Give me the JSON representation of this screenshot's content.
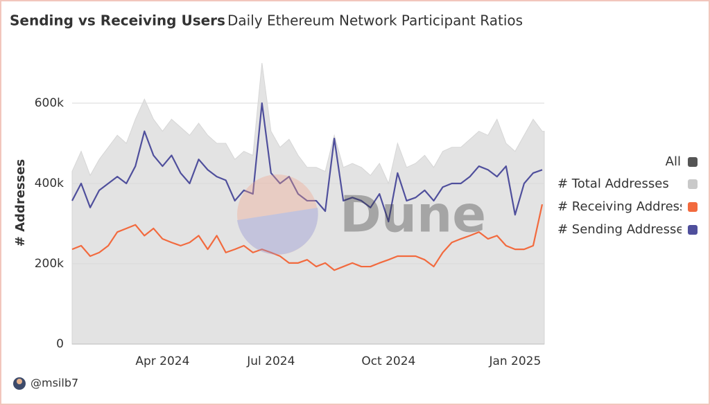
{
  "chart_data": {
    "type": "area-line",
    "title": "Sending vs Receiving Users",
    "subtitle": "Daily Ethereum Network Participant Ratios",
    "y_label": "# Addresses",
    "legend_all": "All",
    "watermark": "Dune",
    "author": "@msilb7",
    "categories": [
      null,
      null,
      null,
      null,
      null,
      null,
      null,
      null,
      null,
      null,
      "Apr 2024",
      null,
      null,
      null,
      null,
      null,
      null,
      null,
      null,
      null,
      null,
      null,
      "Jul 2024",
      null,
      null,
      null,
      null,
      null,
      null,
      null,
      null,
      null,
      null,
      null,
      null,
      "Oct 2024",
      null,
      null,
      null,
      null,
      null,
      null,
      null,
      null,
      null,
      null,
      null,
      null,
      null,
      "Jan 2025",
      null,
      null,
      null
    ],
    "series": [
      {
        "name": "# Total Addresses",
        "color": "#c9c9c9",
        "style": "area",
        "values": [
          430000,
          480000,
          420000,
          460000,
          490000,
          520000,
          500000,
          560000,
          610000,
          560000,
          530000,
          560000,
          540000,
          520000,
          550000,
          520000,
          500000,
          500000,
          460000,
          480000,
          470000,
          700000,
          530000,
          490000,
          510000,
          470000,
          440000,
          440000,
          430000,
          520000,
          440000,
          450000,
          440000,
          420000,
          450000,
          400000,
          500000,
          440000,
          450000,
          470000,
          440000,
          480000,
          490000,
          490000,
          510000,
          530000,
          520000,
          560000,
          500000,
          480000,
          520000,
          560000,
          530000
        ]
      },
      {
        "name": "# Receiving Addresses",
        "color": "#f26a3e",
        "style": "line",
        "values": [
          236000,
          245000,
          219000,
          228000,
          245000,
          279000,
          288000,
          297000,
          270000,
          288000,
          262000,
          253000,
          245000,
          253000,
          270000,
          236000,
          270000,
          228000,
          236000,
          245000,
          228000,
          236000,
          228000,
          219000,
          202000,
          202000,
          210000,
          193000,
          202000,
          184000,
          193000,
          202000,
          193000,
          193000,
          202000,
          210000,
          219000,
          219000,
          219000,
          210000,
          193000,
          228000,
          253000,
          262000,
          270000,
          279000,
          262000,
          270000,
          245000,
          236000,
          236000,
          245000,
          348000
        ]
      },
      {
        "name": "# Sending Addresses",
        "color": "#4f4f9c",
        "style": "line",
        "values": [
          357000,
          400000,
          340000,
          383000,
          400000,
          417000,
          400000,
          443000,
          530000,
          470000,
          443000,
          470000,
          426000,
          400000,
          460000,
          434000,
          417000,
          408000,
          357000,
          383000,
          374000,
          600000,
          426000,
          400000,
          417000,
          374000,
          357000,
          357000,
          331000,
          512000,
          357000,
          365000,
          357000,
          340000,
          374000,
          305000,
          426000,
          357000,
          365000,
          383000,
          357000,
          391000,
          400000,
          400000,
          417000,
          443000,
          434000,
          417000,
          443000,
          322000,
          400000,
          426000,
          434000
        ]
      }
    ],
    "ylim": [
      0,
      700000
    ],
    "yticks": [
      0,
      {
        "value": 200000,
        "label": "200k"
      },
      {
        "value": 400000,
        "label": "400k"
      },
      {
        "value": 600000,
        "label": "600k"
      }
    ],
    "grid": true,
    "legend": "right"
  }
}
